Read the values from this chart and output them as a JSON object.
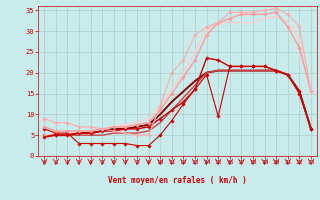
{
  "background_color": "#c8ecec",
  "grid_color": "#b0cccc",
  "xlabel": "Vent moyen/en rafales ( km/h )",
  "xlabel_color": "#cc0000",
  "tick_color": "#cc0000",
  "xlim": [
    -0.5,
    23.5
  ],
  "ylim": [
    0,
    36
  ],
  "yticks": [
    0,
    5,
    10,
    15,
    20,
    25,
    30,
    35
  ],
  "xticks": [
    0,
    1,
    2,
    3,
    4,
    5,
    6,
    7,
    8,
    9,
    10,
    11,
    12,
    13,
    14,
    15,
    16,
    17,
    18,
    19,
    20,
    21,
    22,
    23
  ],
  "series": [
    {
      "x": [
        0,
        1,
        2,
        3,
        4,
        5,
        6,
        7,
        8,
        9,
        10,
        11,
        12,
        13,
        14,
        15,
        16,
        17,
        18,
        19,
        20,
        21,
        22,
        23
      ],
      "y": [
        4.5,
        5.0,
        5.0,
        5.5,
        5.5,
        6.0,
        6.0,
        6.5,
        6.5,
        7.0,
        9.0,
        11.0,
        13.0,
        16.0,
        23.5,
        23.0,
        21.5,
        21.5,
        21.5,
        21.5,
        20.5,
        19.5,
        15.5,
        6.5
      ],
      "color": "#cc0000",
      "lw": 1.0,
      "marker": "D",
      "ms": 1.8
    },
    {
      "x": [
        0,
        1,
        2,
        3,
        4,
        5,
        6,
        7,
        8,
        9,
        10,
        11,
        12,
        13,
        14,
        15,
        16,
        17,
        18,
        19,
        20,
        21,
        22,
        23
      ],
      "y": [
        6.5,
        5.5,
        5.5,
        3.0,
        3.0,
        3.0,
        3.0,
        3.0,
        2.5,
        2.5,
        5.0,
        8.5,
        12.5,
        16.0,
        19.5,
        9.5,
        21.5,
        21.5,
        21.5,
        21.5,
        20.5,
        19.5,
        15.0,
        6.5
      ],
      "color": "#cc0000",
      "lw": 0.8,
      "marker": "D",
      "ms": 1.8
    },
    {
      "x": [
        0,
        1,
        2,
        3,
        4,
        5,
        6,
        7,
        8,
        9,
        10,
        11,
        12,
        13,
        14,
        15,
        16,
        17,
        18,
        19,
        20,
        21,
        22,
        23
      ],
      "y": [
        5.0,
        5.0,
        5.0,
        5.5,
        5.5,
        6.0,
        6.5,
        6.5,
        7.0,
        7.5,
        10.0,
        13.0,
        15.5,
        18.0,
        20.0,
        20.5,
        20.5,
        20.5,
        20.5,
        20.5,
        20.5,
        19.5,
        15.5,
        6.5
      ],
      "color": "#880000",
      "lw": 1.4,
      "marker": null,
      "ms": 0
    },
    {
      "x": [
        0,
        1,
        2,
        3,
        4,
        5,
        6,
        7,
        8,
        9,
        10,
        11,
        12,
        13,
        14,
        15,
        16,
        17,
        18,
        19,
        20,
        21,
        22,
        23
      ],
      "y": [
        7.0,
        6.0,
        6.0,
        6.0,
        6.0,
        6.5,
        7.0,
        7.0,
        7.5,
        8.0,
        11.0,
        15.0,
        19.0,
        23.0,
        29.0,
        32.0,
        33.0,
        34.0,
        34.0,
        34.0,
        34.5,
        31.0,
        26.0,
        15.5
      ],
      "color": "#ff9999",
      "lw": 1.0,
      "marker": "D",
      "ms": 1.8
    },
    {
      "x": [
        0,
        1,
        2,
        3,
        4,
        5,
        6,
        7,
        8,
        9,
        10,
        11,
        12,
        13,
        14,
        15,
        16,
        17,
        18,
        19,
        20,
        21,
        22,
        23
      ],
      "y": [
        9.0,
        8.0,
        8.0,
        7.0,
        7.0,
        6.5,
        6.0,
        5.5,
        5.0,
        5.0,
        12.0,
        20.0,
        23.0,
        29.0,
        31.0,
        32.0,
        34.5,
        34.5,
        34.5,
        35.0,
        35.5,
        34.0,
        31.0,
        15.5
      ],
      "color": "#ffaaaa",
      "lw": 0.8,
      "marker": "D",
      "ms": 1.8
    },
    {
      "x": [
        0,
        1,
        2,
        3,
        4,
        5,
        6,
        7,
        8,
        9,
        10,
        11,
        12,
        13,
        14,
        15,
        16,
        17,
        18,
        19,
        20,
        21,
        22,
        23
      ],
      "y": [
        5.0,
        5.0,
        5.0,
        5.0,
        5.0,
        5.0,
        5.5,
        5.5,
        5.5,
        6.0,
        8.0,
        11.0,
        14.0,
        17.0,
        20.0,
        20.5,
        20.5,
        20.5,
        20.5,
        20.5,
        20.5,
        19.5,
        15.0,
        6.5
      ],
      "color": "#cc4444",
      "lw": 1.0,
      "marker": null,
      "ms": 0
    },
    {
      "x": [
        0,
        1,
        2,
        3,
        4,
        5,
        6,
        7,
        8,
        9,
        10,
        11,
        12,
        13,
        14,
        15,
        16,
        17,
        18,
        19,
        20,
        21,
        22,
        23
      ],
      "y": [
        5.0,
        5.5,
        5.5,
        6.0,
        6.0,
        6.5,
        7.0,
        7.5,
        8.0,
        9.0,
        12.0,
        16.0,
        20.0,
        25.0,
        30.0,
        32.0,
        32.0,
        32.0,
        32.0,
        33.0,
        33.5,
        32.0,
        28.0,
        14.0
      ],
      "color": "#ffcccc",
      "lw": 1.0,
      "marker": null,
      "ms": 0
    }
  ]
}
